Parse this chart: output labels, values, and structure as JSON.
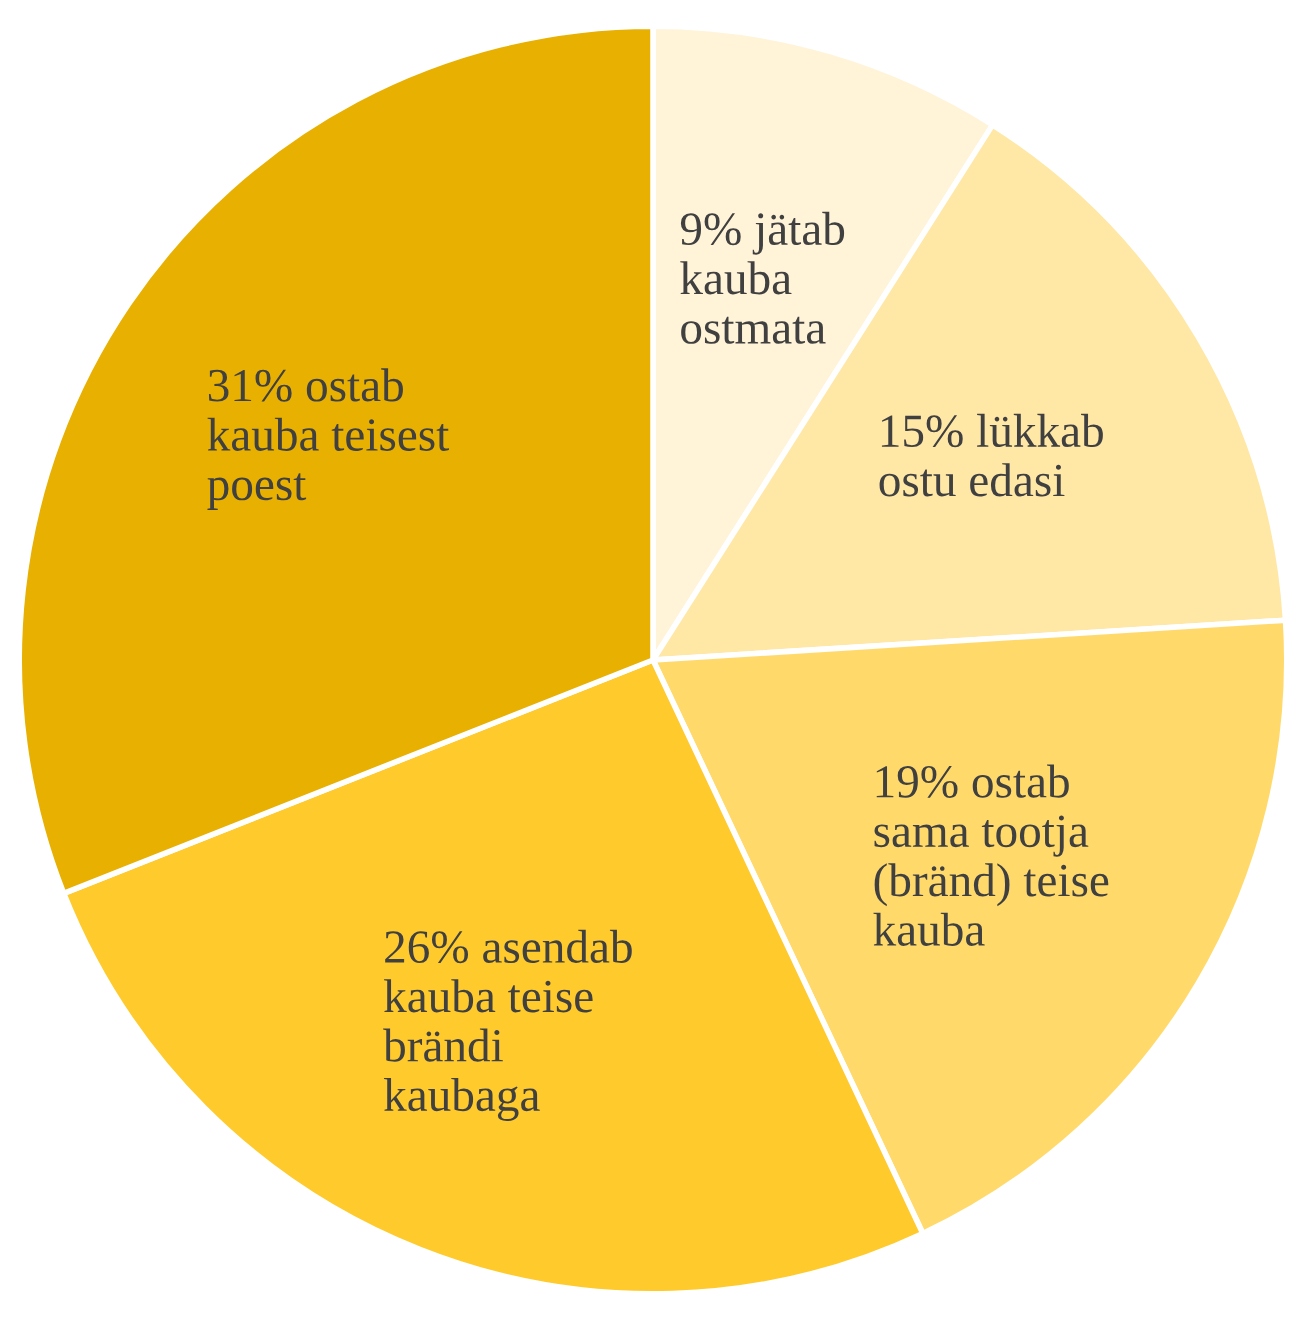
{
  "chart_data": {
    "type": "pie",
    "categories": [
      "jätab\nkauba\nostmata",
      "lükkab\nostu edasi",
      "ostab\nsama tootja\n(bränd) teise\nkauba",
      "asendab\nkauba teise\nbrändi\nkaubaga",
      "ostab\nkauba teisest\npoest"
    ],
    "values": [
      9,
      15,
      19,
      26,
      31
    ],
    "value_labels": [
      "9%",
      "15%",
      "19%",
      "26%",
      "31%"
    ],
    "colors": [
      "#fff3d8",
      "#ffe7a6",
      "#ffda6b",
      "#ffca2c",
      "#e8b000"
    ]
  }
}
